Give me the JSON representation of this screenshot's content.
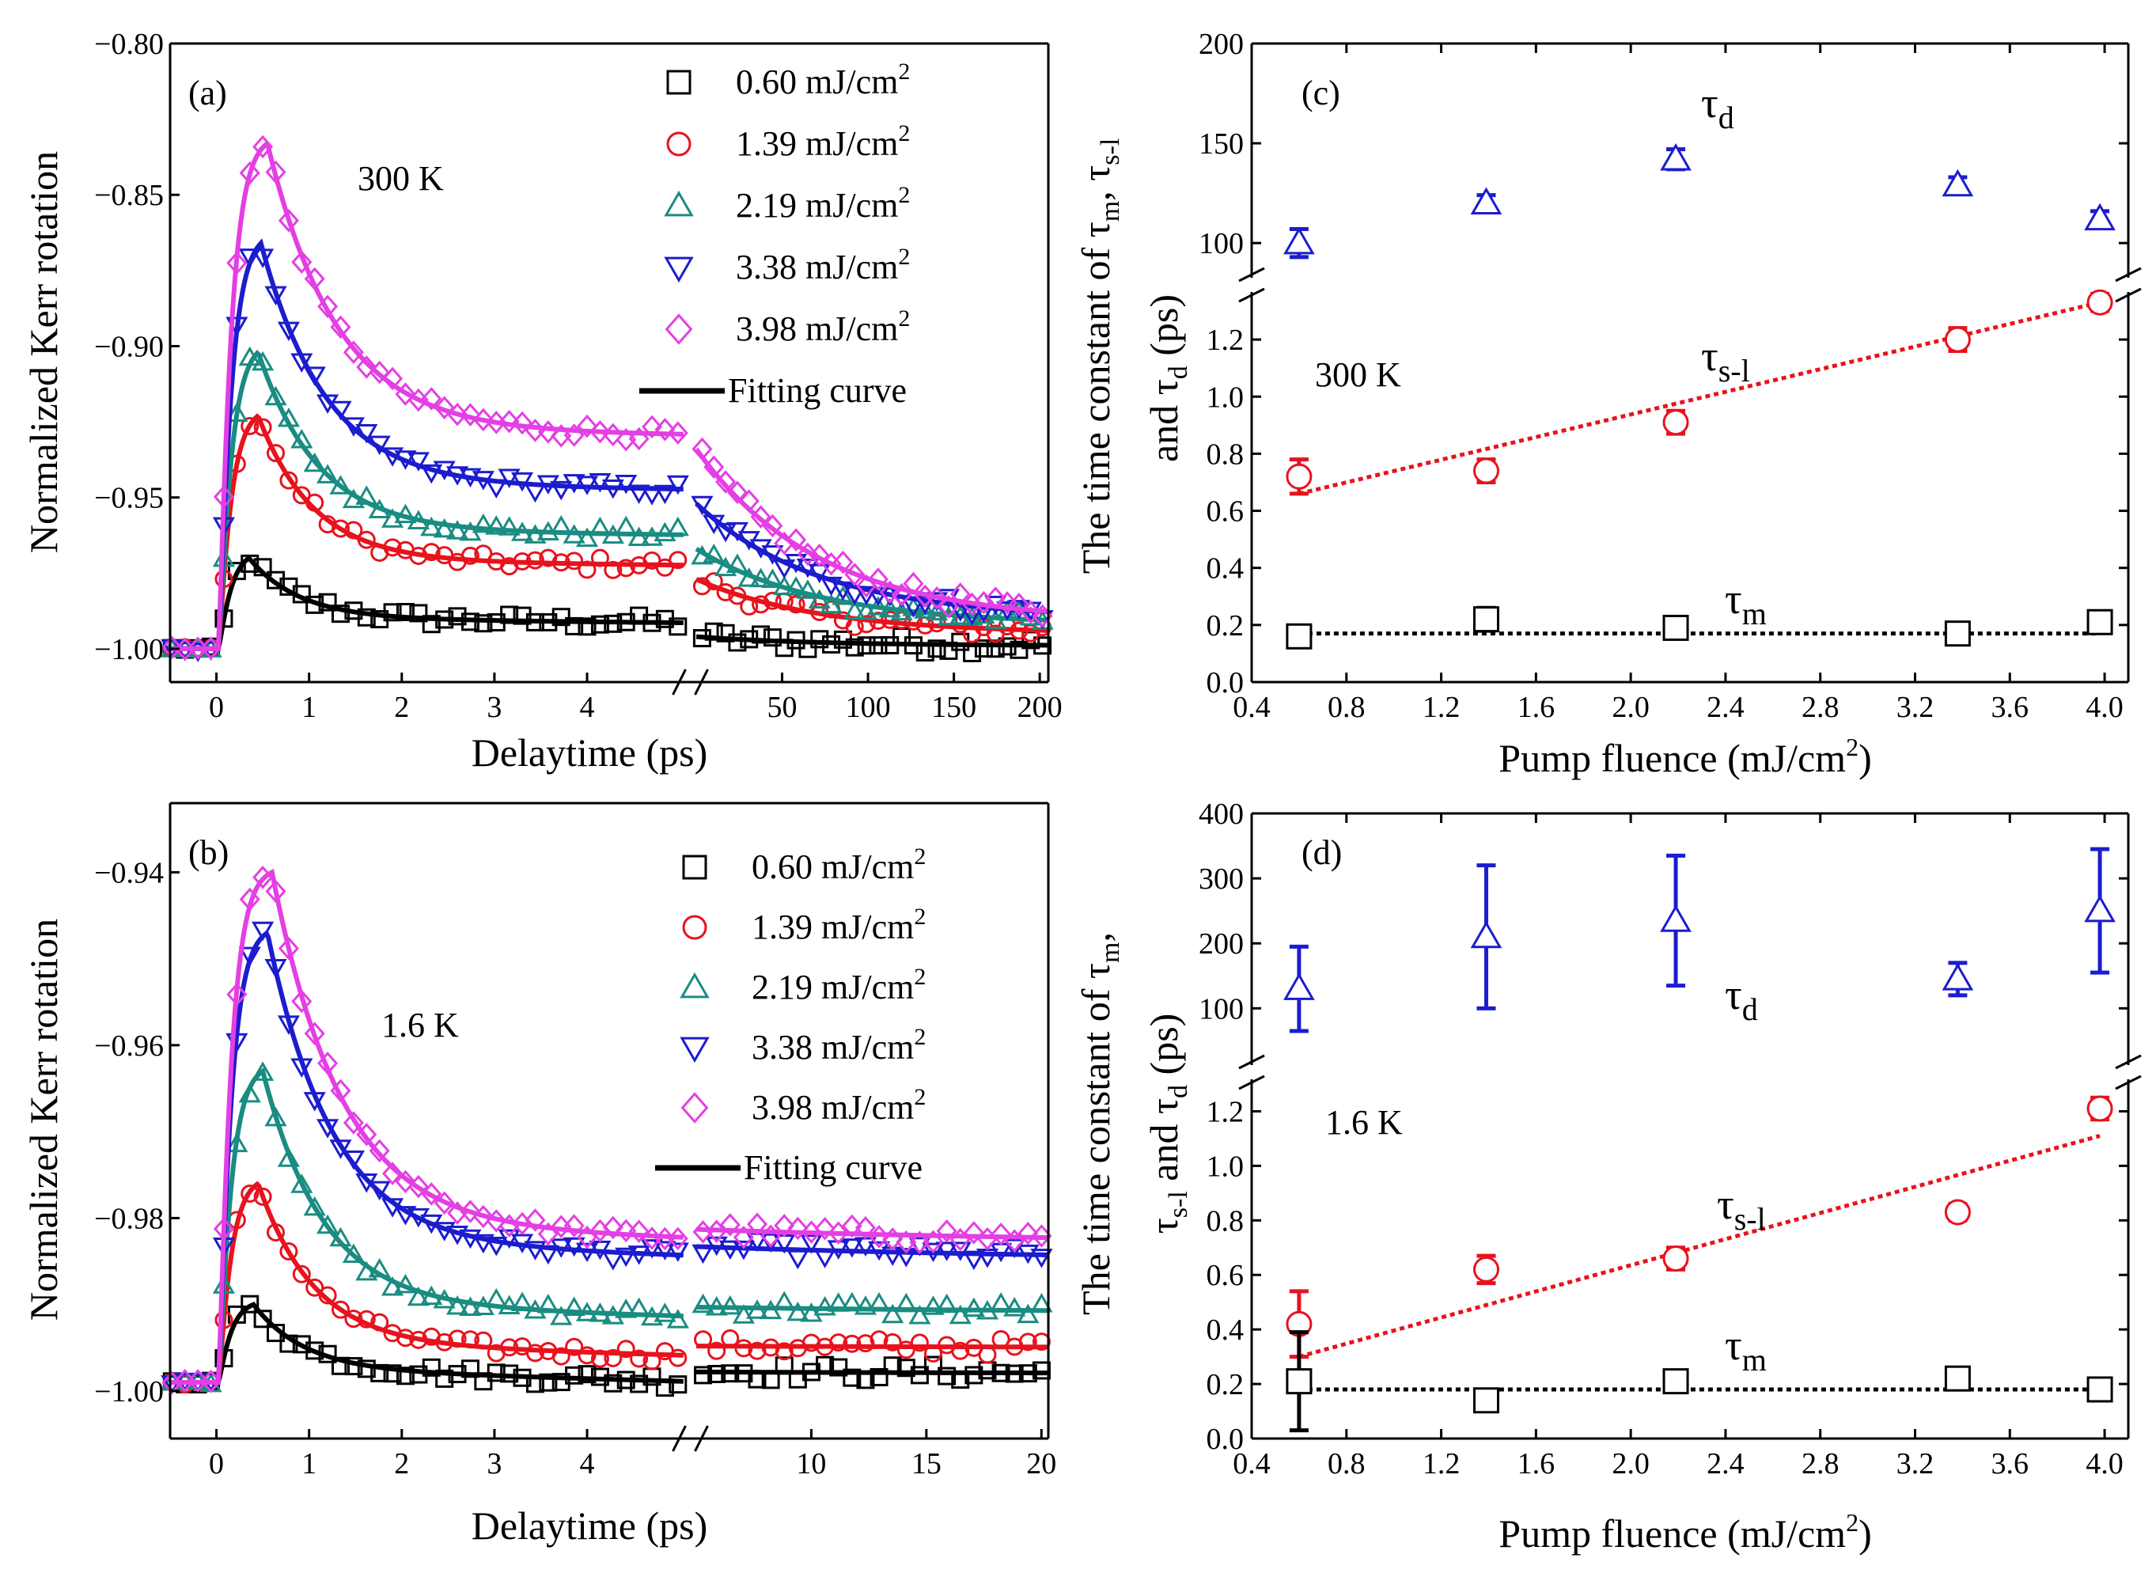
{
  "figure": {
    "colors": {
      "black": "#000000",
      "red": "#e8121d",
      "teal": "#1a8c82",
      "blue": "#1c1ccf",
      "magenta": "#e43fe4"
    }
  },
  "panel_a": {
    "label": "(a)",
    "temperature": "300 K",
    "xlabel": "Delaytime (ps)",
    "ylabel": "Normalized Kerr rotation",
    "yticks": [
      "-1.00",
      "-0.95",
      "-0.90",
      "-0.85",
      "-0.80"
    ],
    "xticks_left": [
      "0",
      "1",
      "2",
      "3",
      "4"
    ],
    "xticks_right": [
      "50",
      "100",
      "150",
      "200"
    ],
    "legend": [
      "0.60 mJ/cm",
      "1.39 mJ/cm",
      "2.19 mJ/cm",
      "3.38 mJ/cm",
      "3.98 mJ/cm"
    ],
    "legend_sup": "2",
    "fit_label": "Fitting curve"
  },
  "panel_b": {
    "label": "(b)",
    "temperature": "1.6 K",
    "xlabel": "Delaytime (ps)",
    "ylabel": "Normalized Kerr rotation",
    "yticks": [
      "-1.00",
      "-0.98",
      "-0.96",
      "-0.94"
    ],
    "xticks_left": [
      "0",
      "1",
      "2",
      "3",
      "4"
    ],
    "xticks_right": [
      "10",
      "15",
      "20"
    ],
    "legend": [
      "0.60 mJ/cm",
      "1.39 mJ/cm",
      "2.19 mJ/cm",
      "3.38 mJ/cm",
      "3.98 mJ/cm"
    ],
    "legend_sup": "2",
    "fit_label": "Fitting curve"
  },
  "panel_c": {
    "label": "(c)",
    "temperature": "300 K",
    "xlabel": "Pump fluence (mJ/cm",
    "xlabel_sup": "2",
    "xlabel_end": ")",
    "ylabel_main": "The time constant of τ",
    "ylabel_sub1": "m",
    "ylabel_mid": ",  τ",
    "ylabel_sub2": "s-l",
    "ylabel2_main": "and τ",
    "ylabel2_sub": "d",
    "ylabel2_end": " (ps)",
    "yticks_low": [
      "0.0",
      "0.2",
      "0.4",
      "0.6",
      "0.8",
      "1.0",
      "1.2"
    ],
    "yticks_high": [
      "100",
      "150",
      "200"
    ],
    "xticks": [
      "0.4",
      "0.8",
      "1.2",
      "1.6",
      "2.0",
      "2.4",
      "2.8",
      "3.2",
      "3.6",
      "4.0"
    ],
    "tau_d": "τ",
    "tau_d_sub": "d",
    "tau_sl": "τ",
    "tau_sl_sub": "s-l",
    "tau_m": "τ",
    "tau_m_sub": "m"
  },
  "panel_d": {
    "label": "(d)",
    "temperature": "1.6 K",
    "xlabel": "Pump fluence (mJ/cm",
    "xlabel_sup": "2",
    "xlabel_end": ")",
    "ylabel_main": "The time constant of τ",
    "ylabel_sub1": "m",
    "ylabel_mid": ",",
    "ylabel2_main": "τ",
    "ylabel2_sub": "s-l",
    "ylabel2_and": " and τ",
    "ylabel2_sub2": "d",
    "ylabel2_end": " (ps)",
    "yticks_low": [
      "0.0",
      "0.2",
      "0.4",
      "0.6",
      "0.8",
      "1.0",
      "1.2"
    ],
    "yticks_high": [
      "100",
      "200",
      "300",
      "400"
    ],
    "xticks": [
      "0.4",
      "0.8",
      "1.2",
      "1.6",
      "2.0",
      "2.4",
      "2.8",
      "3.2",
      "3.6",
      "4.0"
    ],
    "tau_d": "τ",
    "tau_d_sub": "d",
    "tau_sl": "τ",
    "tau_sl_sub": "s-l",
    "tau_m": "τ",
    "tau_m_sub": "m"
  },
  "chart_data": [
    {
      "panel": "a",
      "type": "scatter",
      "title": "",
      "xlabel": "Delaytime (ps)",
      "ylabel": "Normalized Kerr rotation",
      "temperature": "300 K",
      "x_break": "axis broken after 5 ps; right segment 0-200 ps",
      "ylim": [
        -1.01,
        -0.8
      ],
      "baseline": -1.0,
      "series": [
        {
          "name": "0.60 mJ/cm2",
          "color_key": "black",
          "marker": "square",
          "peak_t": 0.35,
          "peak": -0.97,
          "plateau_ps4": -0.99,
          "tail_200ps": -0.999
        },
        {
          "name": "1.39 mJ/cm2",
          "color_key": "red",
          "marker": "circle",
          "peak_t": 0.45,
          "peak": -0.923,
          "plateau_ps4": -0.971,
          "tail_200ps": -0.995
        },
        {
          "name": "2.19 mJ/cm2",
          "color_key": "teal",
          "marker": "triangle-up",
          "peak_t": 0.45,
          "peak": -0.902,
          "plateau_ps4": -0.961,
          "tail_200ps": -0.992
        },
        {
          "name": "3.38 mJ/cm2",
          "color_key": "blue",
          "marker": "triangle-down",
          "peak_t": 0.48,
          "peak": -0.866,
          "plateau_ps4": -0.946,
          "tail_200ps": -0.99
        },
        {
          "name": "3.98 mJ/cm2",
          "color_key": "magenta",
          "marker": "diamond",
          "peak_t": 0.55,
          "peak": -0.833,
          "plateau_ps4": -0.928,
          "tail_200ps": -0.991
        }
      ]
    },
    {
      "panel": "b",
      "type": "scatter",
      "title": "",
      "xlabel": "Delaytime (ps)",
      "ylabel": "Normalized Kerr rotation",
      "temperature": "1.6 K",
      "x_break": "axis broken after 5 ps; right segment 5-20 ps",
      "ylim": [
        -1.005,
        -0.93
      ],
      "baseline": -0.999,
      "series": [
        {
          "name": "0.60 mJ/cm2",
          "color_key": "black",
          "marker": "square",
          "peak_t": 0.4,
          "peak": -0.99,
          "plateau_ps4": -0.9975,
          "tail_20ps": -0.998
        },
        {
          "name": "1.39 mJ/cm2",
          "color_key": "red",
          "marker": "circle",
          "peak_t": 0.45,
          "peak": -0.976,
          "plateau_ps4": -0.9945,
          "tail_20ps": -0.995
        },
        {
          "name": "2.19 mJ/cm2",
          "color_key": "teal",
          "marker": "triangle-up",
          "peak_t": 0.5,
          "peak": -0.963,
          "plateau_ps4": -0.99,
          "tail_20ps": -0.991
        },
        {
          "name": "3.38 mJ/cm2",
          "color_key": "blue",
          "marker": "triangle-down",
          "peak_t": 0.55,
          "peak": -0.947,
          "plateau_ps4": -0.983,
          "tail_20ps": -0.985
        },
        {
          "name": "3.98 mJ/cm2",
          "color_key": "magenta",
          "marker": "diamond",
          "peak_t": 0.6,
          "peak": -0.94,
          "plateau_ps4": -0.981,
          "tail_20ps": -0.983
        }
      ]
    },
    {
      "panel": "c",
      "type": "scatter",
      "xlabel": "Pump fluence (mJ/cm2)",
      "ylabel": "The time constant of tau_m, tau_s-l and tau_d (ps)",
      "temperature": "300 K",
      "x": [
        0.6,
        1.39,
        2.19,
        3.38,
        3.98
      ],
      "xlim": [
        0.4,
        4.1
      ],
      "ylim_low": [
        0.0,
        1.35
      ],
      "ylim_high": [
        85,
        200
      ],
      "series": [
        {
          "name": "tau_d",
          "color_key": "blue",
          "marker": "triangle-up",
          "values": [
            100,
            120,
            142,
            129,
            112
          ],
          "err": [
            7,
            4,
            5,
            4,
            4
          ]
        },
        {
          "name": "tau_s-l",
          "color_key": "red",
          "marker": "circle",
          "values": [
            0.72,
            0.74,
            0.91,
            1.2,
            1.33
          ],
          "err": [
            0.06,
            0.04,
            0.04,
            0.04,
            0.03
          ],
          "fit": [
            [
              0.6,
              0.66
            ],
            [
              3.98,
              1.33
            ]
          ]
        },
        {
          "name": "tau_m",
          "color_key": "black",
          "marker": "square",
          "values": [
            0.16,
            0.22,
            0.19,
            0.17,
            0.21
          ],
          "err": [
            0.03,
            0.04,
            0.03,
            0.03,
            0.03
          ],
          "fit": [
            [
              0.6,
              0.17
            ],
            [
              3.98,
              0.17
            ]
          ]
        }
      ]
    },
    {
      "panel": "d",
      "type": "scatter",
      "xlabel": "Pump fluence (mJ/cm2)",
      "ylabel": "The time constant of tau_m, tau_s-l and tau_d (ps)",
      "temperature": "1.6 K",
      "x": [
        0.6,
        1.39,
        2.19,
        3.38,
        3.98
      ],
      "xlim": [
        0.4,
        4.1
      ],
      "ylim_low": [
        0.0,
        1.3
      ],
      "ylim_high": [
        20,
        400
      ],
      "series": [
        {
          "name": "tau_d",
          "color_key": "blue",
          "marker": "triangle-up",
          "values": [
            130,
            210,
            235,
            145,
            250
          ],
          "err": [
            65,
            110,
            100,
            25,
            95
          ]
        },
        {
          "name": "tau_s-l",
          "color_key": "red",
          "marker": "circle",
          "values": [
            0.42,
            0.62,
            0.66,
            0.83,
            1.21
          ],
          "err": [
            0.12,
            0.05,
            0.04,
            0.03,
            0.04
          ],
          "fit": [
            [
              0.6,
              0.3
            ],
            [
              3.98,
              1.11
            ]
          ]
        },
        {
          "name": "tau_m",
          "color_key": "black",
          "marker": "square",
          "values": [
            0.21,
            0.14,
            0.21,
            0.22,
            0.18
          ],
          "err": [
            0.18,
            0.03,
            0.03,
            0.03,
            0.03
          ],
          "fit": [
            [
              0.6,
              0.18
            ],
            [
              3.98,
              0.18
            ]
          ]
        }
      ]
    }
  ]
}
